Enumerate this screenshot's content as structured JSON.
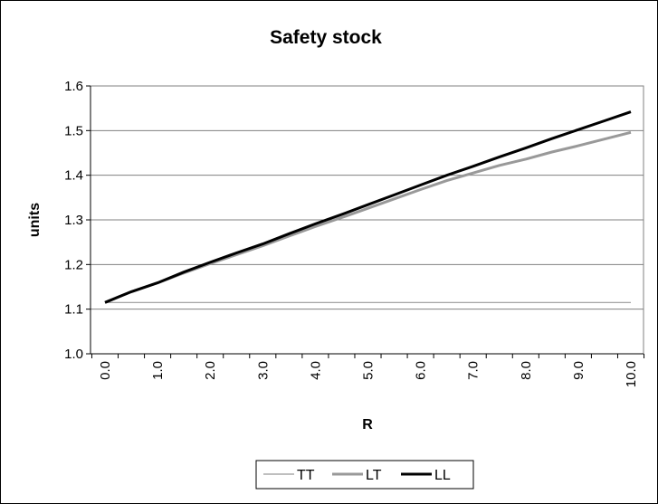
{
  "chart_data": {
    "type": "line",
    "title": "Safety stock",
    "xlabel": "R",
    "ylabel": "units",
    "x": [
      0.0,
      0.5,
      1.0,
      1.5,
      2.0,
      2.5,
      3.0,
      3.5,
      4.0,
      4.5,
      5.0,
      5.5,
      6.0,
      6.5,
      7.0,
      7.5,
      8.0,
      8.5,
      9.0,
      9.5,
      10.0
    ],
    "x_tick_labels": [
      "0.0",
      "1.0",
      "2.0",
      "3.0",
      "4.0",
      "5.0",
      "6.0",
      "7.0",
      "8.0",
      "9.0",
      "10.0"
    ],
    "y_tick_labels": [
      "1.0",
      "1.1",
      "1.2",
      "1.3",
      "1.4",
      "1.5",
      "1.6"
    ],
    "xlim": [
      0.0,
      10.0
    ],
    "ylim": [
      1.0,
      1.6
    ],
    "grid": "horizontal",
    "legend_position": "bottom",
    "series": [
      {
        "name": "TT",
        "color": "#999999",
        "values": [
          1.115,
          1.115,
          1.115,
          1.115,
          1.115,
          1.115,
          1.115,
          1.115,
          1.115,
          1.115,
          1.115,
          1.115,
          1.115,
          1.115,
          1.115,
          1.115,
          1.115,
          1.115,
          1.115,
          1.115,
          1.115
        ]
      },
      {
        "name": "LT",
        "color": "#999999",
        "values": [
          1.115,
          1.139,
          1.159,
          1.181,
          1.202,
          1.222,
          1.242,
          1.264,
          1.285,
          1.305,
          1.326,
          1.347,
          1.368,
          1.388,
          1.405,
          1.422,
          1.436,
          1.452,
          1.466,
          1.481,
          1.496
        ]
      },
      {
        "name": "LL",
        "color": "#000000",
        "values": [
          1.115,
          1.139,
          1.159,
          1.183,
          1.205,
          1.226,
          1.246,
          1.269,
          1.291,
          1.312,
          1.334,
          1.356,
          1.378,
          1.4,
          1.42,
          1.441,
          1.461,
          1.482,
          1.502,
          1.522,
          1.542
        ]
      }
    ]
  }
}
